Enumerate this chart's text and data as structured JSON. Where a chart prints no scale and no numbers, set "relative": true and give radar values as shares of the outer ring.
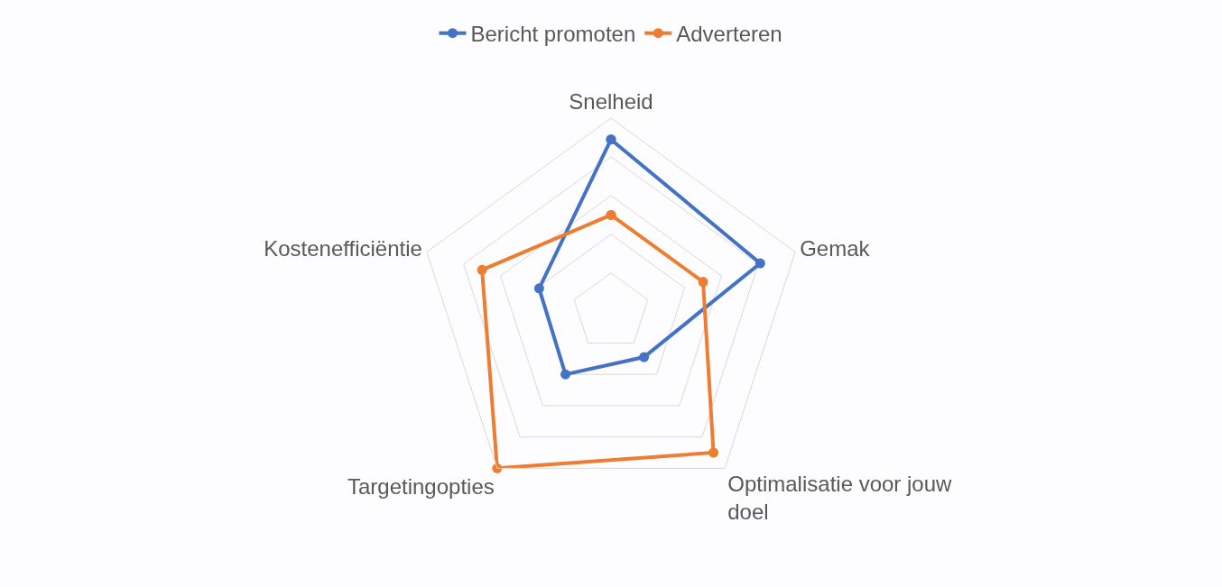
{
  "chart_data": {
    "type": "radar",
    "relative": true,
    "grid": true,
    "legend": "top",
    "marker": "circle",
    "line_style": "solid",
    "categories": [
      "Snelheid",
      "Gemak",
      "Optimalisatie voor jouw doel",
      "Targetingopties",
      "Kostenefficiëntie"
    ],
    "series": [
      {
        "name": "Bericht promoten",
        "color": "#4472c4",
        "values": [
          0.89,
          0.81,
          0.29,
          0.4,
          0.39
        ]
      },
      {
        "name": "Adverteren",
        "color": "#ed7d31",
        "values": [
          0.5,
          0.5,
          0.9,
          1.0,
          0.7
        ]
      }
    ]
  }
}
